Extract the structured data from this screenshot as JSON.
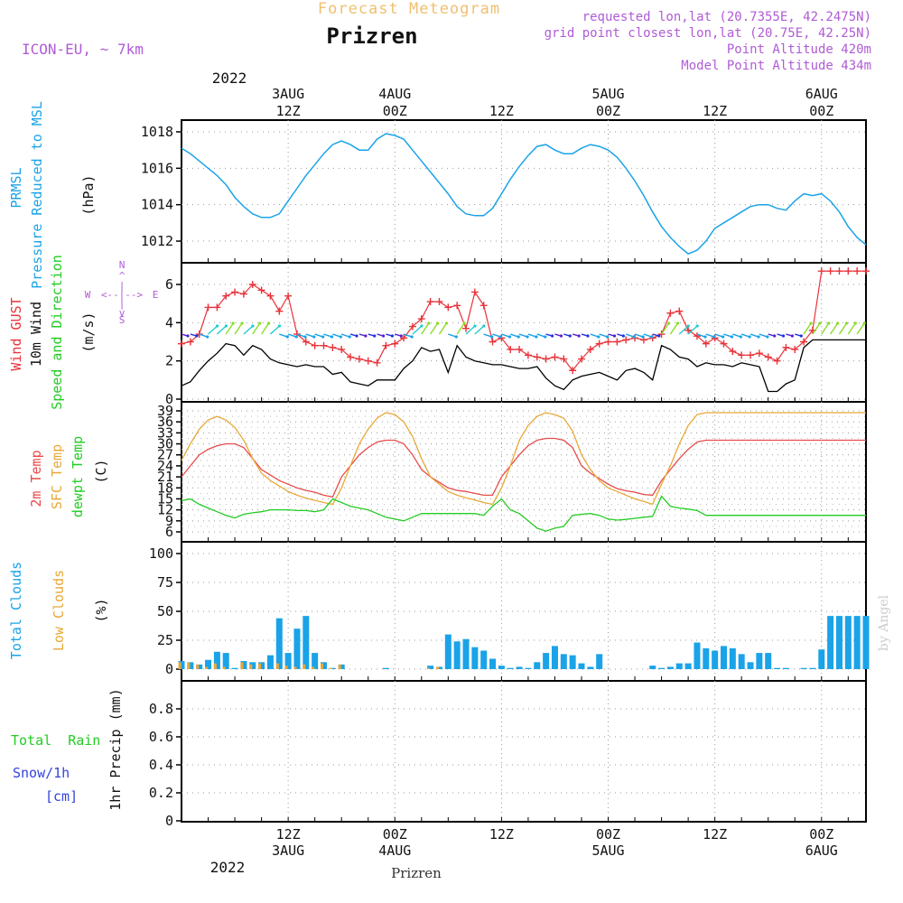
{
  "header": {
    "app_title": "Forecast Meteogram",
    "location": "Prizren",
    "model": "ICON-EU, ~ 7km",
    "requested": "requested lon,lat (20.7355E, 42.2475N)",
    "grid_point": "grid point closest lon,lat (20.75E, 42.25N)",
    "point_altitude": "Point Altitude 420m",
    "model_altitude": "Model Point Altitude 434m",
    "footer_location": "Prizren",
    "credit": "by Angel"
  },
  "time_axis": {
    "top_year": "2022",
    "bottom_year": "2022",
    "ticks": [
      {
        "hour": 12,
        "time": "12Z",
        "date": "3AUG"
      },
      {
        "hour": 24,
        "time": "00Z",
        "date": "4AUG"
      },
      {
        "hour": 36,
        "time": "12Z",
        "date": ""
      },
      {
        "hour": 48,
        "time": "00Z",
        "date": "5AUG"
      },
      {
        "hour": 60,
        "time": "12Z",
        "date": ""
      },
      {
        "hour": 72,
        "time": "00Z",
        "date": "6AUG"
      }
    ]
  },
  "colors": {
    "pressure": "#1aa3e8",
    "gust": "#e8333a",
    "wind": "#000000",
    "temp2m": "#e84a4a",
    "sfc_temp": "#e8a838",
    "dewpt": "#22cc22",
    "total_clouds": "#1aa3e8",
    "low_clouds": "#e8a838",
    "total_rain": "#22cc22",
    "snow": "#3344dd",
    "header_purple": "#b05bd6",
    "header_orange": "#f0c070"
  },
  "chart_data": [
    {
      "type": "line",
      "panel": "pressure",
      "ylabel_lines": [
        "PRMSL",
        "Pressure Reduced to MSL",
        "(hPa)"
      ],
      "yticks": [
        "1012",
        "1014",
        "1016",
        "1018"
      ],
      "ylim": [
        1011.0,
        1018.8
      ],
      "x_hours": [
        0,
        1,
        2,
        3,
        4,
        5,
        6,
        7,
        8,
        9,
        10,
        11,
        12,
        13,
        14,
        15,
        16,
        17,
        18,
        19,
        20,
        21,
        22,
        23,
        24,
        25,
        26,
        27,
        28,
        29,
        30,
        31,
        32,
        33,
        34,
        35,
        36,
        37,
        38,
        39,
        40,
        41,
        42,
        43,
        44,
        45,
        46,
        47,
        48,
        49,
        50,
        51,
        52,
        53,
        54,
        55,
        56,
        57,
        58,
        59,
        60,
        61,
        62,
        63,
        64,
        65,
        66,
        67,
        68,
        69,
        70,
        71,
        72,
        73,
        74,
        75,
        76,
        77
      ],
      "series": [
        {
          "name": "PRMSL",
          "values": [
            1017.1,
            1016.8,
            1016.4,
            1016.0,
            1015.6,
            1015.1,
            1014.4,
            1013.9,
            1013.5,
            1013.3,
            1013.3,
            1013.5,
            1014.2,
            1014.9,
            1015.6,
            1016.2,
            1016.8,
            1017.3,
            1017.5,
            1017.3,
            1017.0,
            1017.0,
            1017.6,
            1017.9,
            1017.8,
            1017.6,
            1017.0,
            1016.4,
            1015.8,
            1015.2,
            1014.6,
            1013.9,
            1013.5,
            1013.4,
            1013.4,
            1013.8,
            1014.6,
            1015.4,
            1016.1,
            1016.7,
            1017.2,
            1017.3,
            1017.0,
            1016.8,
            1016.8,
            1017.1,
            1017.3,
            1017.2,
            1017.0,
            1016.6,
            1016.0,
            1015.3,
            1014.5,
            1013.6,
            1012.8,
            1012.2,
            1011.7,
            1011.3,
            1011.5,
            1012.0,
            1012.7,
            1013.0,
            1013.3,
            1013.6,
            1013.9,
            1014.0,
            1014.0,
            1013.8,
            1013.7,
            1014.2,
            1014.6,
            1014.5,
            1014.6,
            1014.2,
            1013.6,
            1012.8,
            1012.2,
            1011.8
          ]
        }
      ]
    },
    {
      "type": "line",
      "panel": "wind",
      "ylabel_lines": [
        "Wind GUST",
        "10m Wind",
        "Speed and Direction",
        "(m/s)"
      ],
      "yticks": [
        "0",
        "2",
        "4",
        "6"
      ],
      "ylim": [
        0,
        7.1
      ],
      "compass": {
        "n": "N",
        "s": "S",
        "w": "W",
        "e": "E"
      },
      "x_hours": [
        0,
        1,
        2,
        3,
        4,
        5,
        6,
        7,
        8,
        9,
        10,
        11,
        12,
        13,
        14,
        15,
        16,
        17,
        18,
        19,
        20,
        21,
        22,
        23,
        24,
        25,
        26,
        27,
        28,
        29,
        30,
        31,
        32,
        33,
        34,
        35,
        36,
        37,
        38,
        39,
        40,
        41,
        42,
        43,
        44,
        45,
        46,
        47,
        48,
        49,
        50,
        51,
        52,
        53,
        54,
        55,
        56,
        57,
        58,
        59,
        60,
        61,
        62,
        63,
        64,
        65,
        66,
        67,
        68,
        69,
        70,
        71,
        72,
        73,
        74,
        75,
        76,
        77
      ],
      "series": [
        {
          "name": "Wind GUST",
          "values": [
            2.9,
            3.0,
            3.4,
            4.8,
            4.8,
            5.4,
            5.6,
            5.5,
            6.0,
            5.7,
            5.4,
            4.6,
            5.4,
            3.4,
            3.0,
            2.8,
            2.8,
            2.7,
            2.6,
            2.2,
            2.1,
            2.0,
            1.9,
            2.8,
            2.9,
            3.2,
            3.8,
            4.2,
            5.1,
            5.1,
            4.8,
            4.9,
            3.7,
            5.6,
            4.9,
            3.0,
            3.2,
            2.6,
            2.6,
            2.3,
            2.2,
            2.1,
            2.2,
            2.1,
            1.5,
            2.1,
            2.6,
            2.9,
            3.0,
            3.0,
            3.1,
            3.2,
            3.1,
            3.2,
            3.4,
            4.5,
            4.6,
            3.6,
            3.3,
            2.9,
            3.2,
            2.9,
            2.5,
            2.3,
            2.3,
            2.4,
            2.2,
            2.0,
            2.7,
            2.6,
            3.0,
            3.6,
            6.7,
            6.7,
            6.7,
            6.7,
            6.7,
            6.7
          ]
        },
        {
          "name": "10m Wind",
          "values": [
            0.7,
            0.9,
            1.5,
            2.0,
            2.4,
            2.9,
            2.8,
            2.3,
            2.8,
            2.6,
            2.1,
            1.9,
            1.8,
            1.7,
            1.8,
            1.7,
            1.7,
            1.3,
            1.4,
            0.9,
            0.8,
            0.7,
            1.0,
            1.0,
            1.0,
            1.6,
            2.0,
            2.7,
            2.5,
            2.6,
            1.4,
            2.8,
            2.2,
            2.0,
            1.9,
            1.8,
            1.8,
            1.7,
            1.6,
            1.6,
            1.7,
            1.1,
            0.7,
            0.5,
            1.0,
            1.2,
            1.3,
            1.4,
            1.2,
            1.0,
            1.5,
            1.6,
            1.4,
            1.0,
            2.8,
            2.6,
            2.2,
            2.1,
            1.7,
            1.9,
            1.8,
            1.8,
            1.7,
            1.9,
            1.8,
            1.7,
            0.4,
            0.4,
            0.8,
            1.0,
            2.7,
            3.1,
            3.1,
            3.1,
            3.1,
            3.1,
            3.1,
            3.1
          ]
        }
      ]
    },
    {
      "type": "line",
      "panel": "temperature",
      "ylabel_lines": [
        "2m Temp",
        "SFC Temp",
        "dewpt Temp",
        "(C)"
      ],
      "yticks": [
        "6",
        "9",
        "12",
        "15",
        "18",
        "21",
        "24",
        "27",
        "30",
        "33",
        "36",
        "39"
      ],
      "ylim": [
        4.5,
        40.5
      ],
      "x_hours": [
        0,
        1,
        2,
        3,
        4,
        5,
        6,
        7,
        8,
        9,
        10,
        11,
        12,
        13,
        14,
        15,
        16,
        17,
        18,
        19,
        20,
        21,
        22,
        23,
        24,
        25,
        26,
        27,
        28,
        29,
        30,
        31,
        32,
        33,
        34,
        35,
        36,
        37,
        38,
        39,
        40,
        41,
        42,
        43,
        44,
        45,
        46,
        47,
        48,
        49,
        50,
        51,
        52,
        53,
        54,
        55,
        56,
        57,
        58,
        59,
        60,
        61,
        62,
        63,
        64,
        65,
        66,
        67,
        68,
        69,
        70,
        71,
        72,
        73,
        74,
        75,
        76,
        77
      ],
      "series": [
        {
          "name": "2m Temp",
          "values": [
            21.0,
            24.0,
            27.0,
            28.5,
            29.5,
            30.0,
            30.0,
            29.0,
            26.0,
            23.0,
            21.5,
            20.0,
            19.0,
            18.0,
            17.3,
            16.8,
            16.0,
            15.5,
            21.0,
            24.0,
            27.0,
            29.0,
            30.5,
            31.0,
            31.0,
            30.0,
            27.0,
            23.0,
            21.0,
            19.5,
            18.0,
            17.3,
            17.0,
            16.5,
            16.0,
            16.0,
            21.0,
            24.0,
            27.0,
            29.5,
            31.0,
            31.5,
            31.5,
            31.0,
            29.0,
            24.0,
            22.0,
            20.5,
            19.0,
            17.8,
            17.2,
            16.8,
            16.2,
            16.0,
            20.0,
            23.0,
            26.0,
            28.5,
            30.5,
            31.0,
            31.0,
            31.0,
            31.0,
            31.0,
            31.0,
            31.0,
            31.0,
            31.0,
            31.0,
            31.0,
            31.0,
            31.0,
            31.0,
            31.0,
            31.0,
            31.0,
            31.0,
            31.0
          ]
        },
        {
          "name": "SFC Temp",
          "values": [
            25.5,
            30.0,
            34.0,
            36.5,
            37.5,
            36.5,
            34.5,
            31.0,
            26.0,
            22.0,
            20.0,
            18.5,
            17.0,
            16.0,
            15.2,
            14.6,
            14.0,
            13.5,
            18.0,
            24.0,
            30.0,
            34.0,
            37.0,
            38.5,
            38.0,
            36.0,
            32.0,
            26.0,
            21.0,
            19.0,
            17.0,
            16.0,
            15.3,
            14.7,
            14.0,
            13.5,
            18.0,
            24.0,
            31.0,
            35.0,
            37.5,
            38.5,
            38.0,
            37.0,
            33.5,
            27.0,
            23.0,
            20.0,
            18.0,
            17.0,
            16.0,
            15.0,
            14.3,
            13.5,
            19.0,
            24.0,
            30.0,
            35.0,
            38.0,
            38.5,
            38.5,
            38.5,
            38.5,
            38.5,
            38.5,
            38.5,
            38.5,
            38.5,
            38.5,
            38.5,
            38.5,
            38.5,
            38.5,
            38.5,
            38.5,
            38.5,
            38.5,
            38.5
          ]
        },
        {
          "name": "dewpt Temp",
          "values": [
            14.5,
            15.0,
            13.5,
            12.5,
            11.5,
            10.5,
            9.8,
            10.8,
            11.2,
            11.5,
            12.0,
            12.0,
            12.0,
            11.8,
            11.8,
            11.5,
            12.0,
            15.0,
            14.0,
            13.0,
            12.5,
            12.0,
            11.0,
            10.0,
            9.5,
            9.0,
            10.0,
            11.0,
            11.0,
            11.0,
            11.0,
            11.0,
            11.0,
            11.0,
            10.5,
            13.0,
            15.0,
            12.0,
            11.0,
            9.0,
            7.0,
            6.2,
            7.0,
            7.5,
            10.5,
            10.8,
            11.0,
            10.5,
            9.5,
            9.2,
            9.4,
            9.7,
            10.0,
            10.2,
            15.7,
            13.0,
            12.5,
            12.2,
            11.8,
            10.5,
            10.5,
            10.5,
            10.5,
            10.5,
            10.5,
            10.5,
            10.5,
            10.5,
            10.5,
            10.5,
            10.5,
            10.5,
            10.5,
            10.5,
            10.5,
            10.5,
            10.5,
            10.5
          ]
        }
      ]
    },
    {
      "type": "bar",
      "panel": "clouds",
      "ylabel_lines": [
        "Total Clouds",
        "Low Clouds",
        "(%)"
      ],
      "yticks": [
        "0",
        "25",
        "50",
        "75",
        "100"
      ],
      "ylim": [
        0,
        100
      ],
      "x_hours": [
        0,
        1,
        2,
        3,
        4,
        5,
        6,
        7,
        8,
        9,
        10,
        11,
        12,
        13,
        14,
        15,
        16,
        17,
        18,
        19,
        20,
        21,
        22,
        23,
        24,
        25,
        26,
        27,
        28,
        29,
        30,
        31,
        32,
        33,
        34,
        35,
        36,
        37,
        38,
        39,
        40,
        41,
        42,
        43,
        44,
        45,
        46,
        47,
        48,
        49,
        50,
        51,
        52,
        53,
        54,
        55,
        56,
        57,
        58,
        59,
        60,
        61,
        62,
        63,
        64,
        65,
        66,
        67,
        68,
        69,
        70,
        71,
        72,
        73,
        74,
        75,
        76,
        77
      ],
      "series": [
        {
          "name": "Total Clouds",
          "values": [
            7,
            6,
            4,
            8,
            15,
            14,
            1,
            7,
            6,
            6,
            12,
            44,
            14,
            35,
            46,
            14,
            6,
            1,
            4,
            0,
            0,
            0,
            0,
            1,
            0,
            0,
            0,
            0,
            3,
            2,
            30,
            24,
            26,
            19,
            16,
            9,
            3,
            1,
            2,
            1,
            6,
            14,
            20,
            13,
            12,
            5,
            2,
            13,
            0,
            0,
            0,
            0,
            0,
            3,
            1,
            2,
            5,
            5,
            23,
            18,
            16,
            20,
            18,
            13,
            6,
            14,
            14,
            1,
            1,
            0,
            1,
            1,
            17,
            46,
            46,
            46,
            46,
            46
          ]
        },
        {
          "name": "Low Clouds",
          "values": [
            6,
            6,
            4,
            2,
            5,
            2,
            0,
            6,
            4,
            5,
            0,
            5,
            3,
            2,
            4,
            2,
            5,
            1,
            4,
            0,
            0,
            0,
            0,
            0,
            0,
            0,
            0,
            0,
            1,
            2,
            0,
            0,
            0,
            0,
            0,
            0,
            0,
            0,
            0,
            0,
            0,
            0,
            0,
            0,
            0,
            0,
            0,
            0,
            0,
            0,
            0,
            0,
            0,
            0,
            0,
            0,
            0,
            0,
            0,
            0,
            0,
            0,
            0,
            0,
            0,
            0,
            0,
            0,
            0,
            0,
            0,
            0,
            0,
            0,
            0,
            0,
            0,
            0
          ]
        }
      ]
    },
    {
      "type": "bar",
      "panel": "precip",
      "ylabel_lines": [
        "Total  Rain",
        "Snow/1h",
        "[cm]",
        "1hr Precip (mm)"
      ],
      "yticks": [
        "0",
        "0.2",
        "0.4",
        "0.6",
        "0.8"
      ],
      "ylim": [
        0,
        1.0
      ],
      "series": [
        {
          "name": "Total  Rain",
          "values": []
        },
        {
          "name": "Snow/1h",
          "values": []
        }
      ]
    }
  ]
}
